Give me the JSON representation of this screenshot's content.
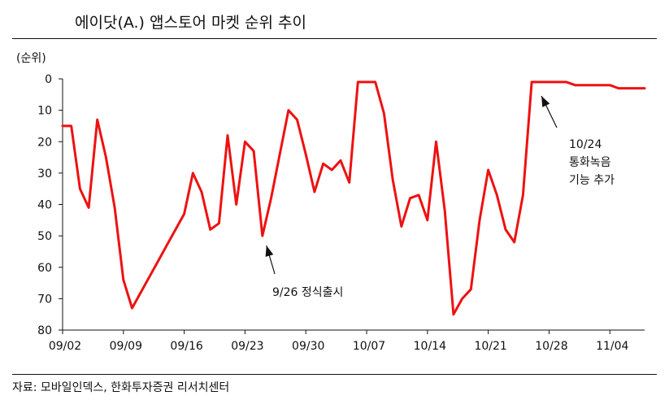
{
  "title": "에이닷(A.) 앱스토어 마켓 순위 추이",
  "source": "자료: 모바일인덱스, 한화투자증권 리서치센터",
  "chart_data": {
    "type": "line",
    "ylabel": "(순위)",
    "ylim": [
      80,
      0
    ],
    "y_inverted": true,
    "y_ticks": [
      0,
      10,
      20,
      30,
      40,
      50,
      60,
      70,
      80
    ],
    "x_tick_labels": [
      "09/02",
      "09/09",
      "09/16",
      "09/23",
      "09/30",
      "10/07",
      "10/14",
      "10/21",
      "10/28",
      "11/04"
    ],
    "line_color": "#ee1111",
    "series": [
      {
        "name": "",
        "values": [
          15,
          15,
          35,
          41,
          13,
          25,
          41,
          64,
          73,
          68,
          63,
          58,
          53,
          48,
          43,
          30,
          36,
          48,
          46,
          18,
          40,
          20,
          23,
          50,
          38,
          24,
          10,
          13,
          24,
          36,
          27,
          29,
          26,
          33,
          1,
          1,
          1,
          11,
          32,
          47,
          38,
          37,
          45,
          20,
          42,
          75,
          70,
          67,
          45,
          29,
          37,
          48,
          52,
          37,
          1,
          1,
          1,
          1,
          1,
          2,
          2,
          2,
          2,
          2,
          3,
          3,
          3,
          3
        ]
      }
    ],
    "annotations": [
      {
        "lines": [
          "9/26 정식출시"
        ]
      },
      {
        "lines": [
          "10/24",
          "통화녹음",
          "기능 추가"
        ]
      }
    ]
  }
}
